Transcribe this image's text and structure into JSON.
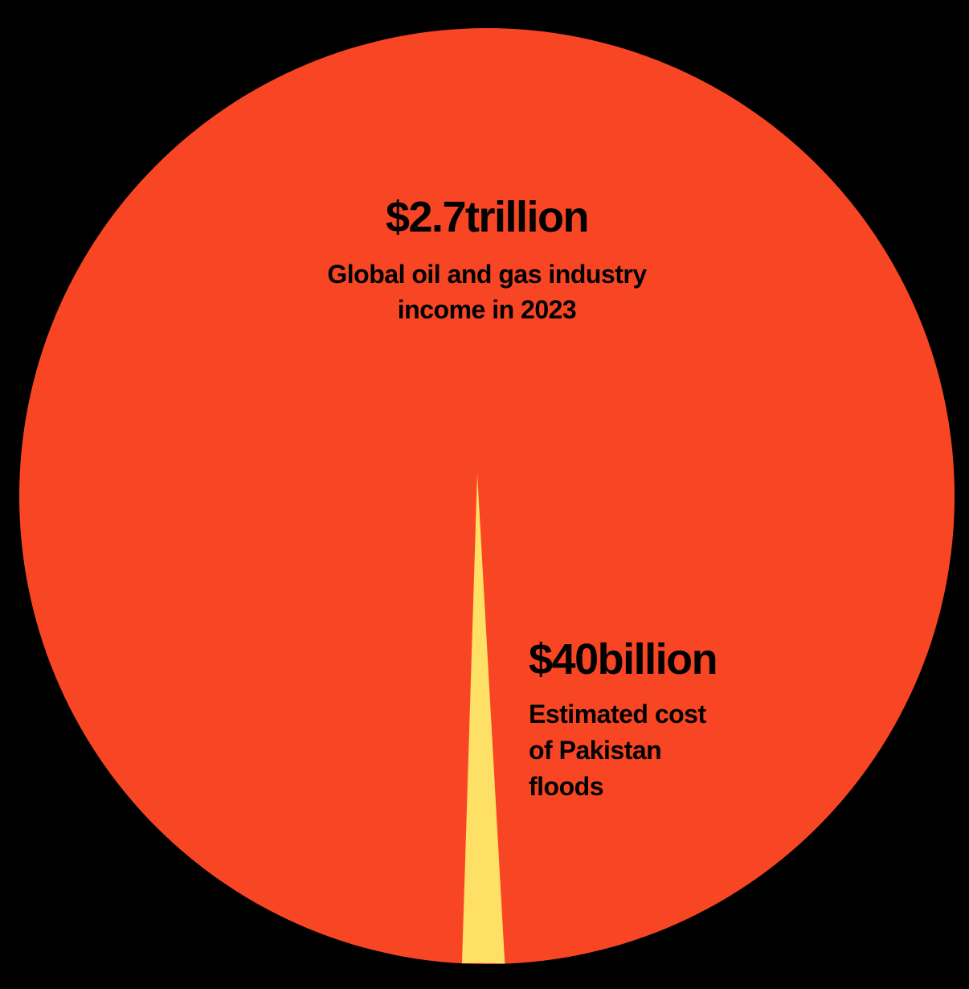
{
  "colors": {
    "background": "#000000",
    "oil_gas": "#F84624",
    "floods": "#FFE066",
    "text": "#000000"
  },
  "chart_data": {
    "type": "pie",
    "slices": [
      {
        "value": 2700,
        "unit": "billion USD",
        "value_label": "$2.7trillion",
        "description_lines": [
          "Global oil and gas industry",
          "income in 2023"
        ],
        "color": "#F84624"
      },
      {
        "value": 40,
        "unit": "billion USD",
        "value_label": "$40billion",
        "description_lines": [
          "Estimated cost",
          "of Pakistan",
          "floods"
        ],
        "color": "#FFE066"
      }
    ],
    "legend": "none"
  }
}
